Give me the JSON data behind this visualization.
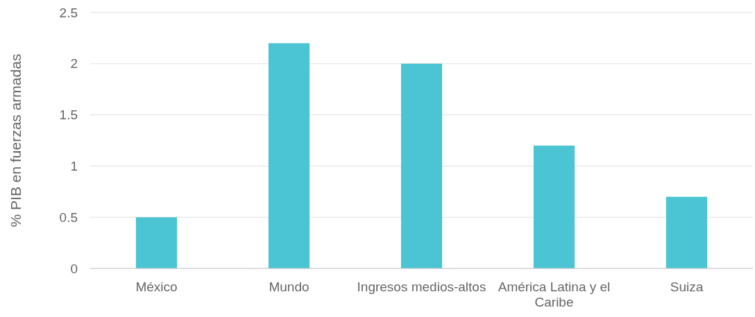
{
  "chart_data": {
    "type": "bar",
    "ylabel": "% PIB en fuerzas armadas",
    "categories": [
      "México",
      "Mundo",
      "Ingresos medios-altos",
      "América Latina y el Caribe",
      "Suiza"
    ],
    "values": [
      0.5,
      2.2,
      2.0,
      1.2,
      0.7
    ],
    "color": "#4bc4d3",
    "ylim": [
      0,
      2.5
    ],
    "yticks": [
      0,
      0.5,
      1,
      1.5,
      2,
      2.5
    ],
    "grid": "y"
  }
}
